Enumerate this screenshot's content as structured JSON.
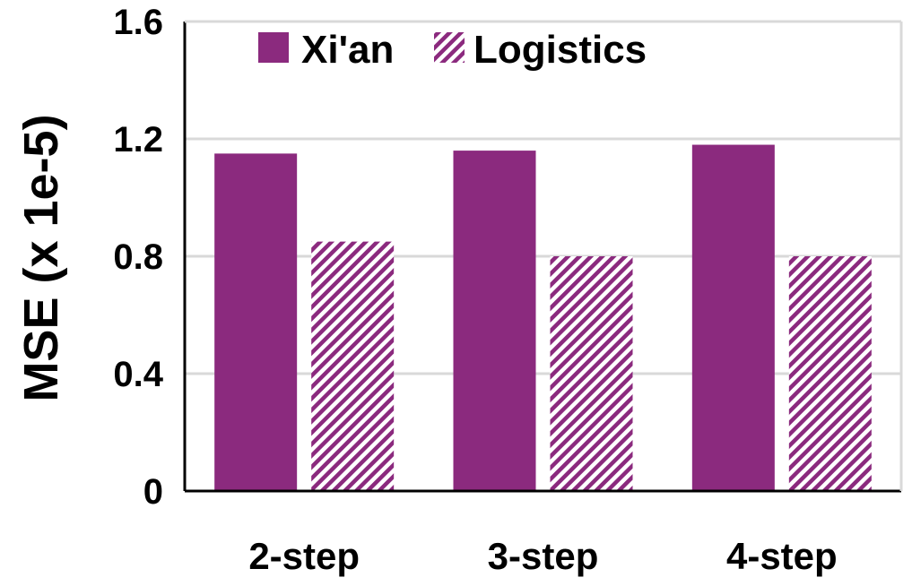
{
  "chart_data": {
    "type": "bar",
    "categories": [
      "2-step",
      "3-step",
      "4-step"
    ],
    "series": [
      {
        "name": "Xi'an",
        "values": [
          1.15,
          1.16,
          1.18
        ],
        "color": "#8B2A7E",
        "pattern": "solid"
      },
      {
        "name": "Logistics",
        "values": [
          0.85,
          0.8,
          0.8
        ],
        "color": "#8B2A7E",
        "pattern": "diagonal-hatch"
      }
    ],
    "title": "",
    "xlabel": "",
    "ylabel": "MSE (x 1e-5)",
    "ylim": [
      0,
      1.6
    ],
    "yticks": [
      "0",
      "0.4",
      "0.8",
      "1.2",
      "1.6"
    ],
    "grid": true,
    "legend_position": "top-left"
  }
}
